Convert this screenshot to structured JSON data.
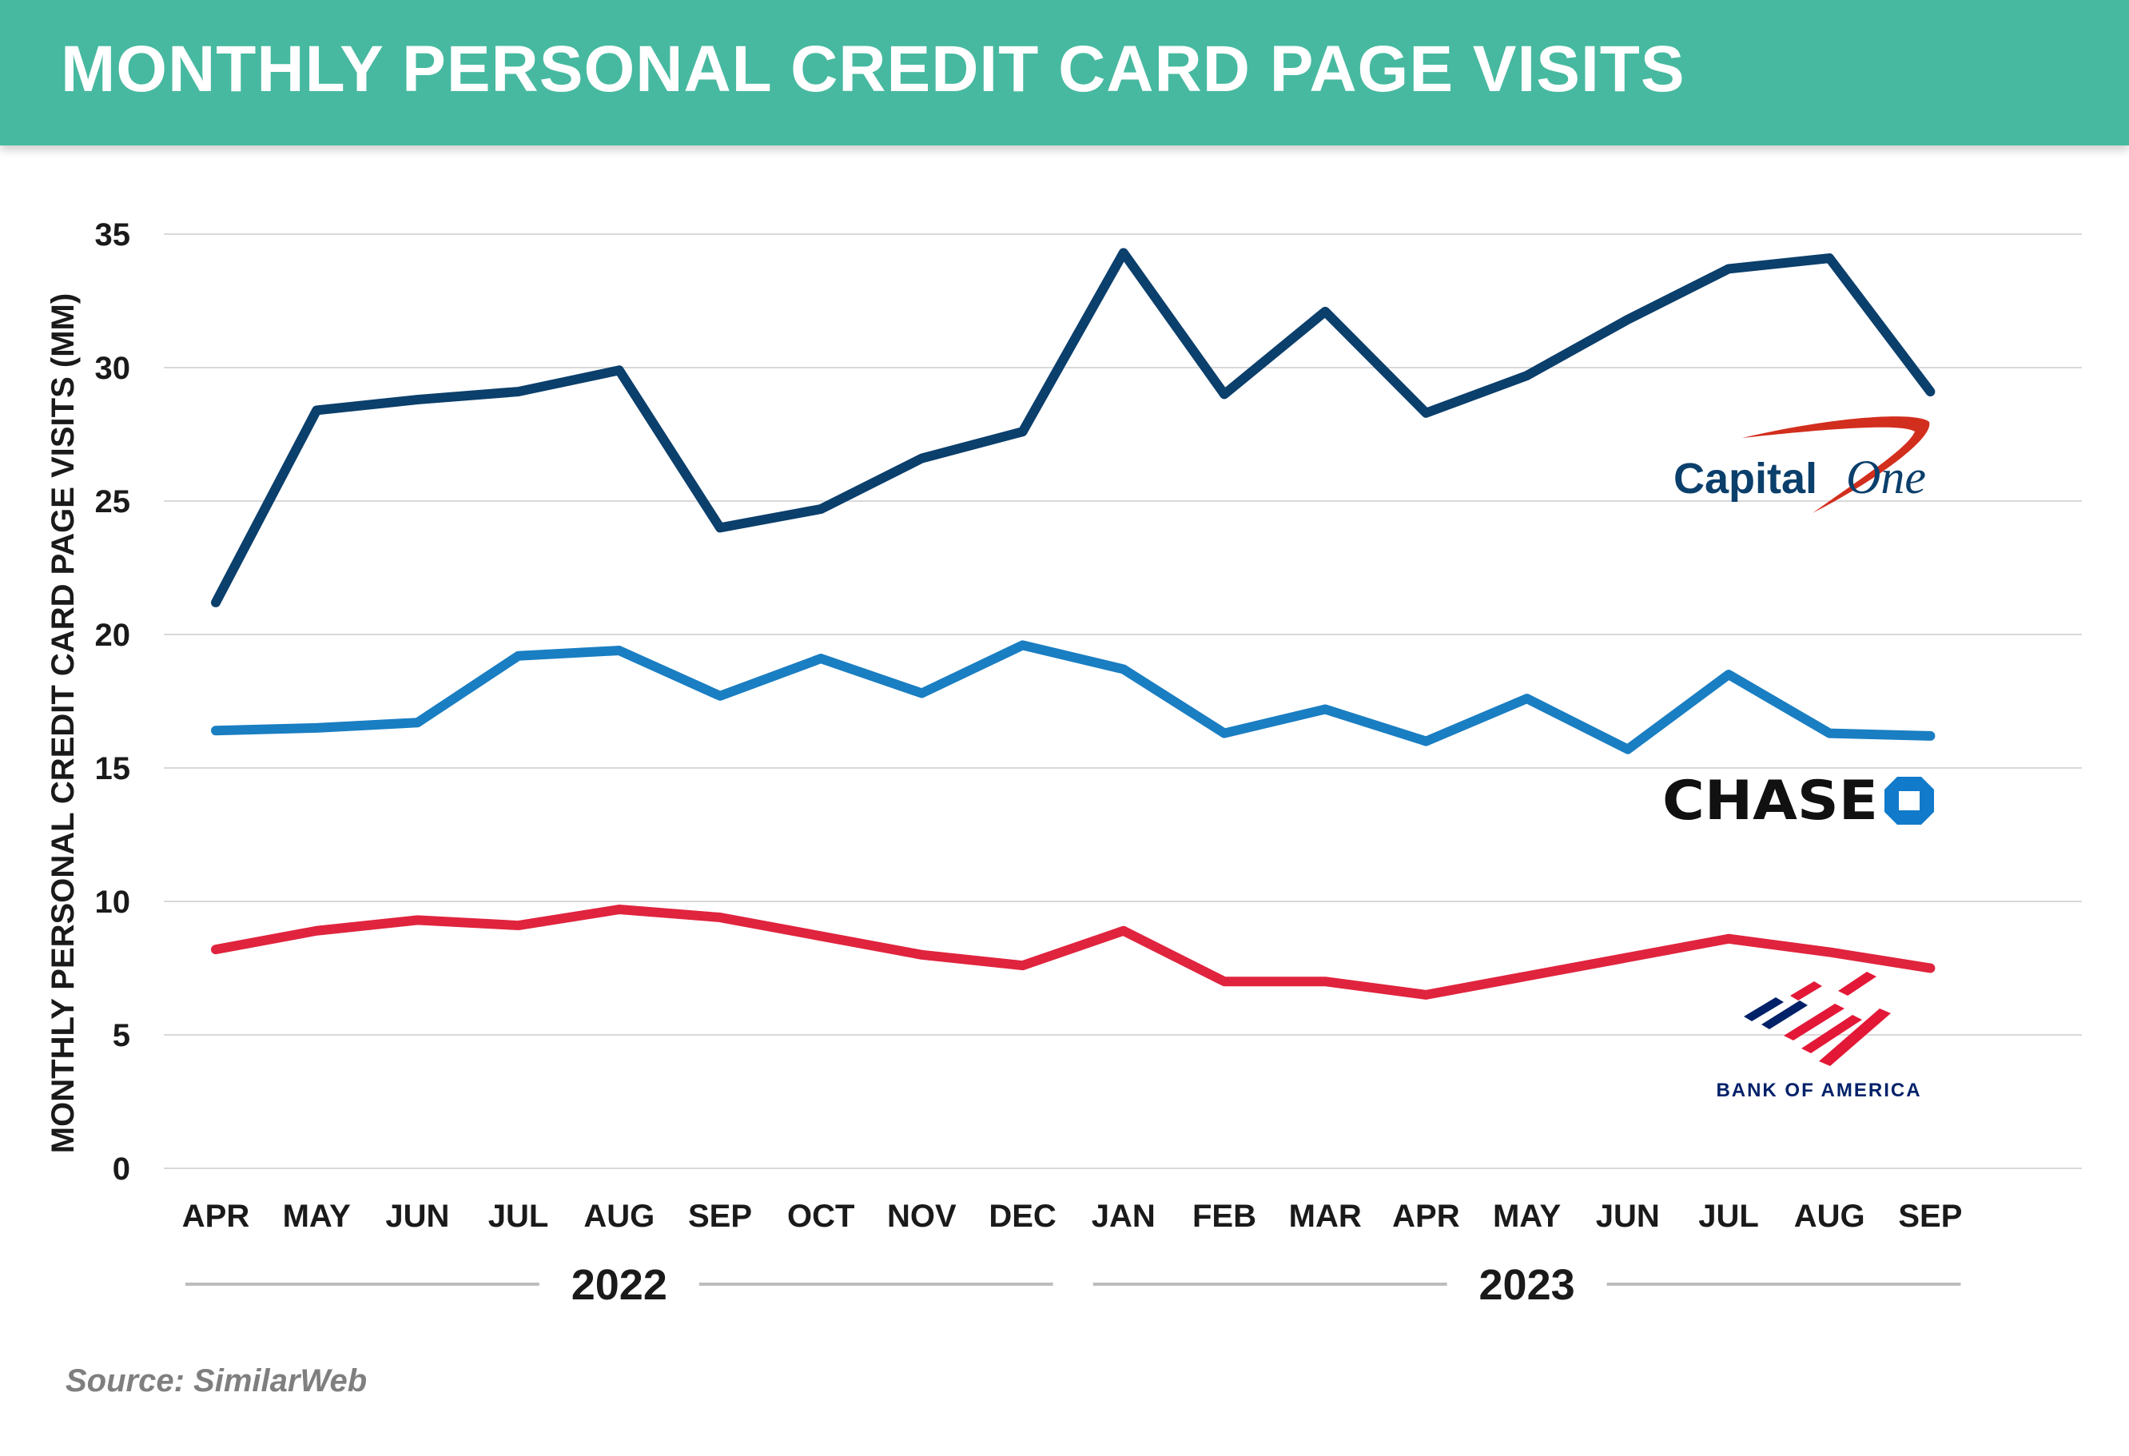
{
  "header": {
    "title": "MONTHLY PERSONAL CREDIT CARD PAGE VISITS"
  },
  "source": "Source: SimilarWeb",
  "chart_data": {
    "type": "line",
    "ylabel": "MONTHLY PERSONAL CREDIT CARD PAGE VISITS (MM)",
    "xlabel": "",
    "ylim": [
      0,
      35
    ],
    "yticks": [
      0,
      5,
      10,
      15,
      20,
      25,
      30,
      35
    ],
    "grid": true,
    "categories": [
      "APR",
      "MAY",
      "JUN",
      "JUL",
      "AUG",
      "SEP",
      "OCT",
      "NOV",
      "DEC",
      "JAN",
      "FEB",
      "MAR",
      "APR",
      "MAY",
      "JUN",
      "JUL",
      "AUG",
      "SEP"
    ],
    "year_groups": [
      {
        "label": "2022",
        "from": 0,
        "to": 8
      },
      {
        "label": "2023",
        "from": 9,
        "to": 17
      }
    ],
    "series": [
      {
        "name": "Capital One",
        "color": "#0b3f6c",
        "values": [
          21.2,
          28.4,
          28.8,
          29.1,
          29.9,
          24.0,
          24.7,
          26.6,
          27.6,
          34.3,
          29.0,
          32.1,
          28.3,
          29.7,
          31.8,
          33.7,
          34.1,
          29.1
        ]
      },
      {
        "name": "Chase",
        "color": "#1a7ec2",
        "values": [
          16.4,
          16.5,
          16.7,
          19.2,
          19.4,
          17.7,
          19.1,
          17.8,
          19.6,
          18.7,
          16.3,
          17.2,
          16.0,
          17.6,
          15.7,
          18.5,
          16.3,
          16.2
        ]
      },
      {
        "name": "Bank of America",
        "color": "#e0243e",
        "values": [
          8.2,
          8.9,
          9.3,
          9.1,
          9.7,
          9.4,
          8.7,
          8.0,
          7.6,
          8.9,
          7.0,
          7.0,
          6.5,
          7.2,
          7.9,
          8.6,
          8.1,
          7.5
        ]
      }
    ],
    "logos": {
      "capital_one": {
        "text_main": "Capital",
        "text_script": "One",
        "color": "#0b3f6c",
        "swoosh_color": "#d22e1e"
      },
      "chase": {
        "text": "CHASE",
        "color": "#111111",
        "octagon_color": "#117aca"
      },
      "bank_of_america": {
        "text": "BANK OF AMERICA",
        "color": "#012169",
        "flag_red": "#e31837",
        "flag_blue": "#012169"
      }
    }
  }
}
